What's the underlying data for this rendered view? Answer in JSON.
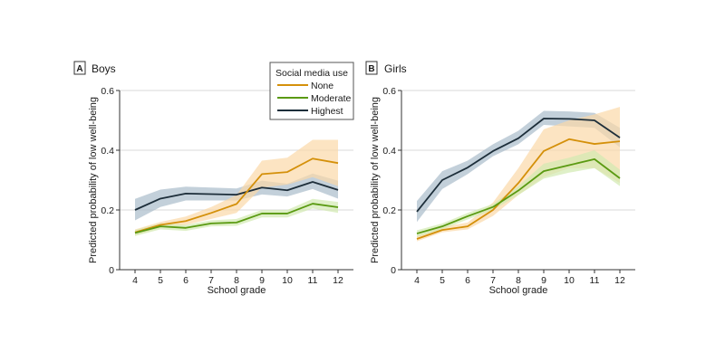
{
  "chart_data": [
    {
      "type": "line",
      "panel_letter": "A",
      "title": "Boys",
      "xlabel": "School grade",
      "ylabel": "Predicted probability of low well-being",
      "x": [
        4,
        5,
        6,
        7,
        8,
        9,
        10,
        11,
        12
      ],
      "xticks": [
        "4",
        "5",
        "6",
        "7",
        "8",
        "9",
        "10",
        "11",
        "12"
      ],
      "yticks": [
        "0",
        "0.2",
        "0.4",
        "0.6"
      ],
      "ylim": [
        0,
        0.6
      ],
      "grid": "horizontal",
      "legend_position": "top-right",
      "series": [
        {
          "name": "None",
          "values": [
            0.125,
            0.15,
            0.163,
            0.19,
            0.22,
            0.32,
            0.327,
            0.372,
            0.357
          ],
          "ci_lower": [
            0.115,
            0.14,
            0.15,
            0.17,
            0.19,
            0.275,
            0.285,
            0.31,
            0.28
          ],
          "ci_upper": [
            0.135,
            0.16,
            0.178,
            0.21,
            0.25,
            0.365,
            0.375,
            0.435,
            0.435
          ]
        },
        {
          "name": "Moderate",
          "values": [
            0.123,
            0.145,
            0.14,
            0.155,
            0.158,
            0.188,
            0.188,
            0.221,
            0.209
          ],
          "ci_lower": [
            0.113,
            0.135,
            0.13,
            0.145,
            0.147,
            0.175,
            0.175,
            0.205,
            0.19
          ],
          "ci_upper": [
            0.133,
            0.155,
            0.15,
            0.165,
            0.17,
            0.2,
            0.2,
            0.237,
            0.227
          ]
        },
        {
          "name": "Highest",
          "values": [
            0.2,
            0.238,
            0.255,
            0.253,
            0.251,
            0.275,
            0.266,
            0.294,
            0.267
          ],
          "ci_lower": [
            0.165,
            0.21,
            0.232,
            0.232,
            0.232,
            0.252,
            0.245,
            0.27,
            0.238
          ],
          "ci_upper": [
            0.237,
            0.268,
            0.278,
            0.275,
            0.272,
            0.298,
            0.288,
            0.322,
            0.298
          ]
        }
      ]
    },
    {
      "type": "line",
      "panel_letter": "B",
      "title": "Girls",
      "xlabel": "School grade",
      "ylabel": "Predicted probability of low well-being",
      "x": [
        4,
        5,
        6,
        7,
        8,
        9,
        10,
        11,
        12
      ],
      "xticks": [
        "4",
        "5",
        "6",
        "7",
        "8",
        "9",
        "10",
        "11",
        "12"
      ],
      "yticks": [
        "0",
        "0.2",
        "0.4",
        "0.6"
      ],
      "ylim": [
        0,
        0.6
      ],
      "grid": "horizontal",
      "series": [
        {
          "name": "None",
          "values": [
            0.103,
            0.133,
            0.145,
            0.2,
            0.29,
            0.397,
            0.437,
            0.421,
            0.43
          ],
          "ci_lower": [
            0.095,
            0.125,
            0.135,
            0.18,
            0.25,
            0.31,
            0.34,
            0.34,
            0.29
          ],
          "ci_upper": [
            0.113,
            0.143,
            0.158,
            0.225,
            0.34,
            0.47,
            0.5,
            0.52,
            0.545
          ]
        },
        {
          "name": "Moderate",
          "values": [
            0.121,
            0.145,
            0.179,
            0.21,
            0.265,
            0.33,
            0.35,
            0.37,
            0.306
          ],
          "ci_lower": [
            0.11,
            0.135,
            0.168,
            0.2,
            0.25,
            0.305,
            0.325,
            0.34,
            0.28
          ],
          "ci_upper": [
            0.132,
            0.155,
            0.19,
            0.22,
            0.28,
            0.355,
            0.375,
            0.4,
            0.335
          ]
        },
        {
          "name": "Highest",
          "values": [
            0.194,
            0.3,
            0.342,
            0.397,
            0.44,
            0.506,
            0.505,
            0.5,
            0.442
          ],
          "ci_lower": [
            0.16,
            0.27,
            0.32,
            0.38,
            0.42,
            0.485,
            0.48,
            0.475,
            0.41
          ],
          "ci_upper": [
            0.23,
            0.33,
            0.365,
            0.42,
            0.465,
            0.532,
            0.53,
            0.525,
            0.475
          ]
        }
      ]
    }
  ],
  "legend": {
    "title": "Social media use",
    "items": [
      "None",
      "Moderate",
      "Highest"
    ]
  },
  "colors": {
    "None": "#d4900a",
    "Moderate": "#5a9a12",
    "Highest": "#1d2e3a",
    "None_band": "#fbd9a8",
    "Moderate_band": "#d2eab0",
    "Highest_band": "#a9bccb",
    "grid": "#d9d9d9"
  }
}
